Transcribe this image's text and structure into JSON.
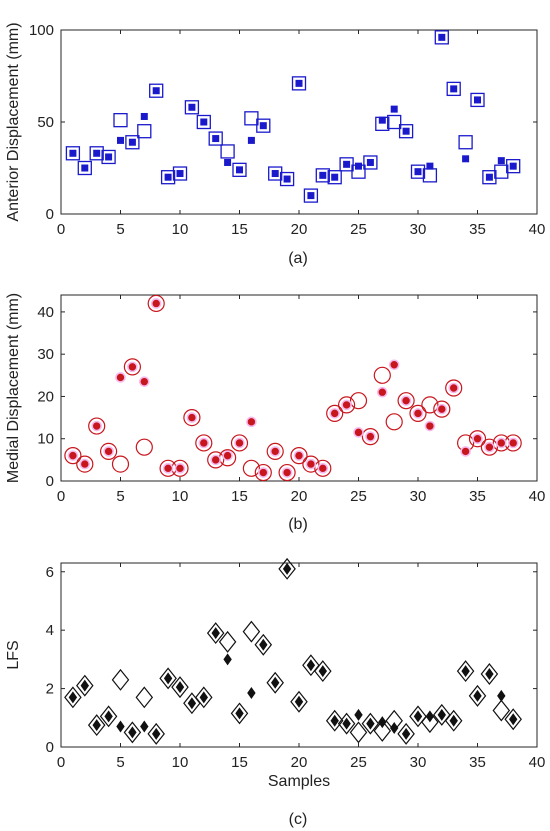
{
  "panel_labels": [
    "(a)",
    "(b)",
    "(c)"
  ],
  "chart_data": [
    {
      "type": "scatter",
      "title": "",
      "xlabel": "",
      "ylabel": "Anterior Displacement (mm)",
      "xlim": [
        0,
        40
      ],
      "ylim": [
        0,
        100
      ],
      "xticks": [
        0,
        5,
        10,
        15,
        20,
        25,
        30,
        35,
        40
      ],
      "yticks": [
        0,
        50,
        100
      ],
      "grid": false,
      "marker": "square",
      "color": "#1a1acc",
      "series": [
        {
          "marker_style": "open",
          "x": [
            1,
            2,
            3,
            4,
            5,
            6,
            7,
            8,
            9,
            10,
            11,
            12,
            13,
            14,
            15,
            16,
            17,
            18,
            19,
            20,
            21,
            22,
            23,
            24,
            25,
            26,
            27,
            28,
            29,
            30,
            31,
            32,
            33,
            34,
            35,
            36,
            37,
            38
          ],
          "y": [
            33,
            25,
            33,
            31,
            51,
            39,
            45,
            67,
            20,
            22,
            58,
            50,
            41,
            34,
            24,
            52,
            48,
            22,
            19,
            71,
            10,
            21,
            20,
            27,
            23,
            28,
            49,
            50,
            45,
            23,
            21,
            96,
            68,
            39,
            62,
            20,
            23,
            26
          ]
        },
        {
          "marker_style": "filled",
          "x": [
            1,
            2,
            3,
            4,
            5,
            6,
            7,
            8,
            9,
            10,
            11,
            12,
            13,
            14,
            15,
            16,
            17,
            18,
            19,
            20,
            21,
            22,
            23,
            24,
            25,
            26,
            27,
            28,
            29,
            30,
            31,
            32,
            33,
            34,
            35,
            36,
            37,
            38
          ],
          "y": [
            33,
            25,
            33,
            31,
            40,
            39,
            53,
            67,
            20,
            22,
            58,
            50,
            41,
            28,
            24,
            40,
            48,
            22,
            19,
            71,
            10,
            21,
            20,
            27,
            26,
            28,
            51,
            57,
            45,
            23,
            26,
            96,
            68,
            30,
            62,
            20,
            29,
            26
          ]
        }
      ]
    },
    {
      "type": "scatter",
      "title": "",
      "xlabel": "",
      "ylabel": "Medial Displacement (mm)",
      "xlim": [
        0,
        40
      ],
      "ylim": [
        0,
        44
      ],
      "xticks": [
        0,
        5,
        10,
        15,
        20,
        25,
        30,
        35,
        40
      ],
      "yticks": [
        0,
        10,
        20,
        30,
        40
      ],
      "grid": false,
      "marker": "circle",
      "color": "#c8161d",
      "series": [
        {
          "marker_style": "open",
          "x": [
            1,
            2,
            3,
            4,
            5,
            6,
            7,
            8,
            9,
            10,
            11,
            12,
            13,
            14,
            15,
            16,
            17,
            18,
            19,
            20,
            21,
            22,
            23,
            24,
            25,
            26,
            27,
            28,
            29,
            30,
            31,
            32,
            33,
            34,
            35,
            36,
            37,
            38
          ],
          "y": [
            6,
            4,
            13,
            7,
            4,
            27,
            8,
            42,
            3,
            3,
            15,
            9,
            5,
            5.5,
            9,
            3,
            2,
            7,
            2,
            6,
            4,
            3,
            16,
            18,
            19,
            10.5,
            25,
            14,
            19,
            16,
            18,
            17,
            22,
            9,
            10,
            8,
            9,
            9
          ]
        },
        {
          "marker_style": "filled",
          "x": [
            1,
            2,
            3,
            4,
            5,
            6,
            7,
            8,
            9,
            10,
            11,
            12,
            13,
            14,
            15,
            16,
            17,
            18,
            19,
            20,
            21,
            22,
            23,
            24,
            25,
            26,
            27,
            28,
            29,
            30,
            31,
            32,
            33,
            34,
            35,
            36,
            37,
            38
          ],
          "y": [
            6,
            4,
            13,
            7,
            24.5,
            27,
            23.5,
            42,
            3,
            3,
            15,
            9,
            5,
            6,
            9,
            14,
            2,
            7,
            2,
            6,
            4,
            3,
            16,
            18,
            11.5,
            10.5,
            21,
            27.5,
            19,
            16,
            13,
            17,
            22,
            7,
            10,
            8,
            9,
            9
          ]
        }
      ]
    },
    {
      "type": "scatter",
      "title": "",
      "xlabel": "Samples",
      "ylabel": "LFS",
      "xlim": [
        0,
        40
      ],
      "ylim": [
        0,
        6.3
      ],
      "xticks": [
        0,
        5,
        10,
        15,
        20,
        25,
        30,
        35,
        40
      ],
      "yticks": [
        0,
        2,
        4,
        6
      ],
      "grid": false,
      "marker": "diamond",
      "color": "#111111",
      "series": [
        {
          "marker_style": "open",
          "x": [
            1,
            2,
            3,
            4,
            5,
            6,
            7,
            8,
            9,
            10,
            11,
            12,
            13,
            14,
            15,
            16,
            17,
            18,
            19,
            20,
            21,
            22,
            23,
            24,
            25,
            26,
            27,
            28,
            29,
            30,
            31,
            32,
            33,
            34,
            35,
            36,
            37,
            38
          ],
          "y": [
            1.7,
            2.1,
            0.75,
            1.05,
            2.3,
            0.5,
            1.7,
            0.45,
            2.35,
            2.05,
            1.5,
            1.7,
            3.9,
            3.6,
            1.15,
            3.95,
            3.5,
            2.2,
            6.1,
            1.55,
            2.8,
            2.6,
            0.9,
            0.8,
            0.5,
            0.8,
            0.55,
            0.9,
            0.45,
            1.05,
            0.85,
            1.1,
            0.9,
            2.6,
            1.75,
            2.5,
            1.25,
            0.95
          ]
        },
        {
          "marker_style": "filled",
          "x": [
            1,
            2,
            3,
            4,
            5,
            6,
            7,
            8,
            9,
            10,
            11,
            12,
            13,
            14,
            15,
            16,
            17,
            18,
            19,
            20,
            21,
            22,
            23,
            24,
            25,
            26,
            27,
            28,
            29,
            30,
            31,
            32,
            33,
            34,
            35,
            36,
            37,
            38
          ],
          "y": [
            1.7,
            2.1,
            0.75,
            1.05,
            0.7,
            0.5,
            0.7,
            0.45,
            2.35,
            2.05,
            1.5,
            1.7,
            3.9,
            3.0,
            1.15,
            1.85,
            3.5,
            2.2,
            6.1,
            1.55,
            2.8,
            2.6,
            0.9,
            0.8,
            1.1,
            0.8,
            0.85,
            0.65,
            0.45,
            1.05,
            1.05,
            1.1,
            0.9,
            2.6,
            1.75,
            2.5,
            1.75,
            0.95
          ]
        }
      ]
    }
  ]
}
